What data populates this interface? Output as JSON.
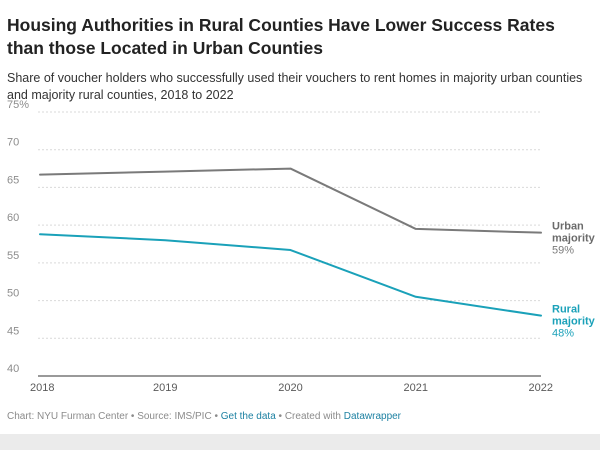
{
  "title": "Housing Authorities in Rural Counties Have Lower Success Rates than those Located in Urban Counties",
  "subtitle": "Share of voucher holders who successfully used their vouchers to rent homes in majority urban counties and majority rural counties, 2018 to 2022",
  "footer": {
    "chart_credit": "Chart: NYU Furman Center • Source: IMS/PIC • ",
    "get_data": "Get the data",
    "created": " • Created with ",
    "datawrapper": "Datawrapper"
  },
  "colors": {
    "urban": "#7a7a7a",
    "rural": "#1aa1b9",
    "grid": "#d9d9d9",
    "axis": "#333333",
    "link": "#1d81a2"
  },
  "chart_data": {
    "type": "line",
    "x": [
      "2018",
      "2019",
      "2020",
      "2021",
      "2022"
    ],
    "ylim": [
      40,
      75
    ],
    "yticks": [
      "75%",
      "70",
      "65",
      "60",
      "55",
      "50",
      "45",
      "40"
    ],
    "ytick_values": [
      75,
      70,
      65,
      60,
      55,
      50,
      45,
      40
    ],
    "series": [
      {
        "name": "Urban majority",
        "label_line1": "Urban",
        "label_line2": "majority",
        "end_label": "59%",
        "values": [
          66.7,
          67.1,
          67.5,
          59.5,
          59.0
        ]
      },
      {
        "name": "Rural majority",
        "label_line1": "Rural",
        "label_line2": "majority",
        "end_label": "48%",
        "values": [
          58.8,
          58.0,
          56.7,
          50.5,
          48.0
        ]
      }
    ]
  }
}
